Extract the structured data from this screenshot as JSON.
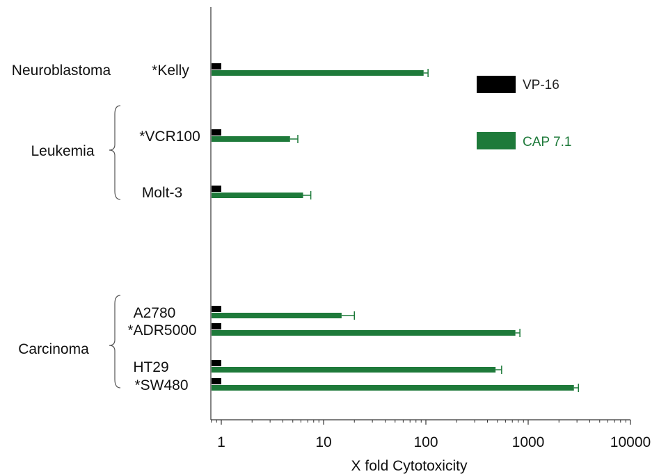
{
  "chart_data": {
    "type": "bar",
    "orientation": "horizontal",
    "xscale": "log",
    "xlim": [
      0.8,
      10000
    ],
    "xlabel": "X fold Cytotoxicity",
    "ylabel": "",
    "title": "",
    "grid": false,
    "legend_position": "top-right",
    "x_ticks": [
      "1",
      "10",
      "100",
      "1000",
      "10000"
    ],
    "categories": [
      "*Kelly",
      "*VCR100",
      "Molt-3",
      "A2780",
      "*ADR5000",
      "HT29",
      "*SW480"
    ],
    "groups": [
      {
        "label": "Neuroblastoma",
        "members": [
          "*Kelly"
        ]
      },
      {
        "label": "Leukemia",
        "members": [
          "*VCR100",
          "Molt-3"
        ]
      },
      {
        "label": "Carcinoma",
        "members": [
          "A2780",
          "*ADR5000",
          "HT29",
          "*SW480"
        ]
      }
    ],
    "series": [
      {
        "name": "VP-16",
        "color": "#000000",
        "values": [
          1,
          1,
          1,
          1,
          1,
          1,
          1
        ]
      },
      {
        "name": "CAP 7.1",
        "color": "#1e7a3a",
        "values": [
          95,
          4.7,
          6.3,
          15,
          750,
          480,
          2800
        ],
        "errors": [
          10,
          0.9,
          1.2,
          5,
          80,
          70,
          300
        ]
      }
    ]
  }
}
